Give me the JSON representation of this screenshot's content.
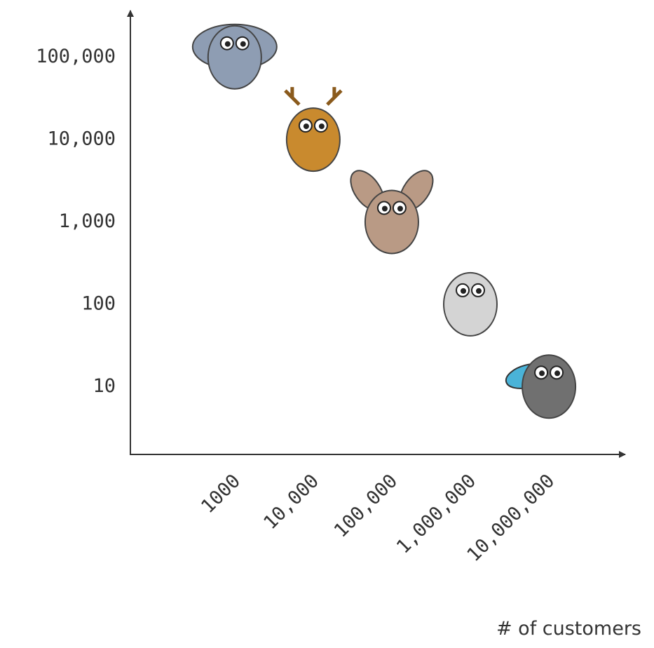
{
  "chart_data": {
    "type": "scatter",
    "x_label": "# of customers",
    "x": [
      1000,
      10000,
      100000,
      1000000,
      10000000
    ],
    "values": [
      100000,
      10000,
      1000,
      100,
      10
    ],
    "colors": [
      "#8e9db3",
      "#c98a2e",
      "#b99a85",
      "#d4d4d4",
      "#707070"
    ],
    "xlim": [
      47,
      90000000
    ],
    "ylim": [
      1.5,
      370000
    ],
    "xlog": true,
    "ylog": true,
    "xticks": [
      1000,
      {
        "value": 10000,
        "label": "10,000"
      },
      {
        "value": 100000,
        "label": "100,000"
      },
      {
        "value": 1000000,
        "label": "1,000,000"
      },
      {
        "value": 10000000,
        "label": "10,000,000"
      }
    ],
    "yticks": [
      10,
      100,
      {
        "value": 1000,
        "label": "1,000"
      },
      {
        "value": 10000,
        "label": "10,000"
      },
      {
        "value": 100000,
        "label": "100,000"
      }
    ]
  }
}
